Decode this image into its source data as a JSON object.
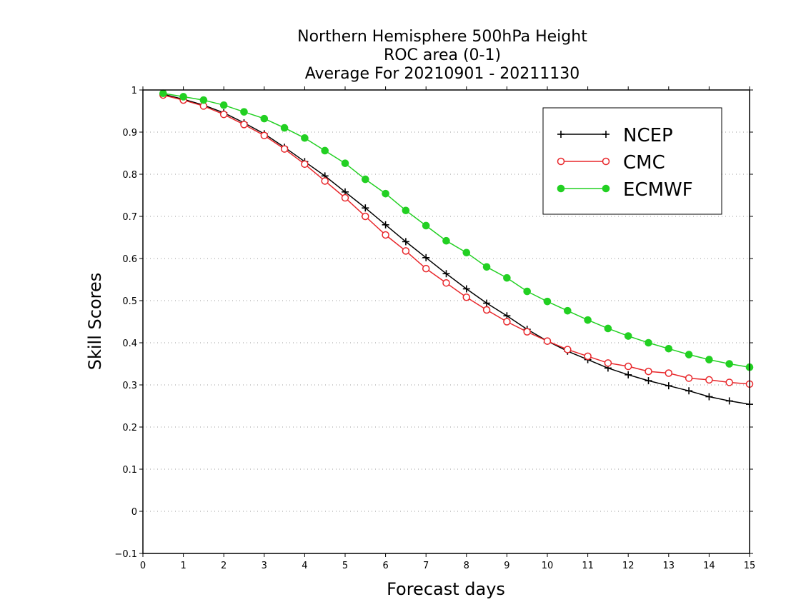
{
  "chart_data": {
    "type": "line",
    "title_lines": [
      "Northern Hemisphere 500hPa Height",
      "ROC area (0-1)",
      "Average For 20210901 - 20211130"
    ],
    "xlabel": "Forecast days",
    "ylabel": "Skill Scores",
    "xlim": [
      0,
      15
    ],
    "ylim": [
      -0.1,
      1
    ],
    "x_ticks": [
      0,
      1,
      2,
      3,
      4,
      5,
      6,
      7,
      8,
      9,
      10,
      11,
      12,
      13,
      14,
      15
    ],
    "y_ticks": [
      -0.1,
      0,
      0.1,
      0.2,
      0.3,
      0.4,
      0.5,
      0.6,
      0.7,
      0.8,
      0.9,
      1
    ],
    "y_tick_labels": [
      "−0.1",
      "0",
      "0.1",
      "0.2",
      "0.3",
      "0.4",
      "0.5",
      "0.6",
      "0.7",
      "0.8",
      "0.9",
      "1"
    ],
    "grid": "horizontal dotted",
    "legend_position": "top-right",
    "x": [
      0.5,
      1,
      1.5,
      2,
      2.5,
      3,
      3.5,
      4,
      4.5,
      5,
      5.5,
      6,
      6.5,
      7,
      7.5,
      8,
      8.5,
      9,
      9.5,
      10,
      10.5,
      11,
      11.5,
      12,
      12.5,
      13,
      13.5,
      14,
      14.5,
      15
    ],
    "series": [
      {
        "name": "NCEP",
        "color": "#000000",
        "marker": "plus",
        "values": [
          0.99,
          0.978,
          0.964,
          0.946,
          0.922,
          0.896,
          0.864,
          0.83,
          0.796,
          0.758,
          0.72,
          0.68,
          0.64,
          0.602,
          0.564,
          0.528,
          0.494,
          0.464,
          0.432,
          0.404,
          0.38,
          0.36,
          0.34,
          0.324,
          0.31,
          0.298,
          0.286,
          0.272,
          0.262,
          0.254
        ]
      },
      {
        "name": "CMC",
        "color": "#e8262a",
        "marker": "open-circle",
        "values": [
          0.988,
          0.976,
          0.962,
          0.942,
          0.918,
          0.892,
          0.86,
          0.824,
          0.784,
          0.744,
          0.7,
          0.656,
          0.618,
          0.576,
          0.542,
          0.508,
          0.478,
          0.45,
          0.426,
          0.404,
          0.384,
          0.368,
          0.352,
          0.344,
          0.332,
          0.328,
          0.316,
          0.312,
          0.306,
          0.302
        ]
      },
      {
        "name": "ECMWF",
        "color": "#22d022",
        "marker": "filled-circle",
        "values": [
          0.992,
          0.984,
          0.976,
          0.964,
          0.948,
          0.932,
          0.91,
          0.886,
          0.856,
          0.826,
          0.788,
          0.754,
          0.714,
          0.678,
          0.642,
          0.614,
          0.58,
          0.554,
          0.522,
          0.498,
          0.476,
          0.454,
          0.434,
          0.416,
          0.4,
          0.386,
          0.372,
          0.36,
          0.35,
          0.342
        ]
      }
    ]
  }
}
